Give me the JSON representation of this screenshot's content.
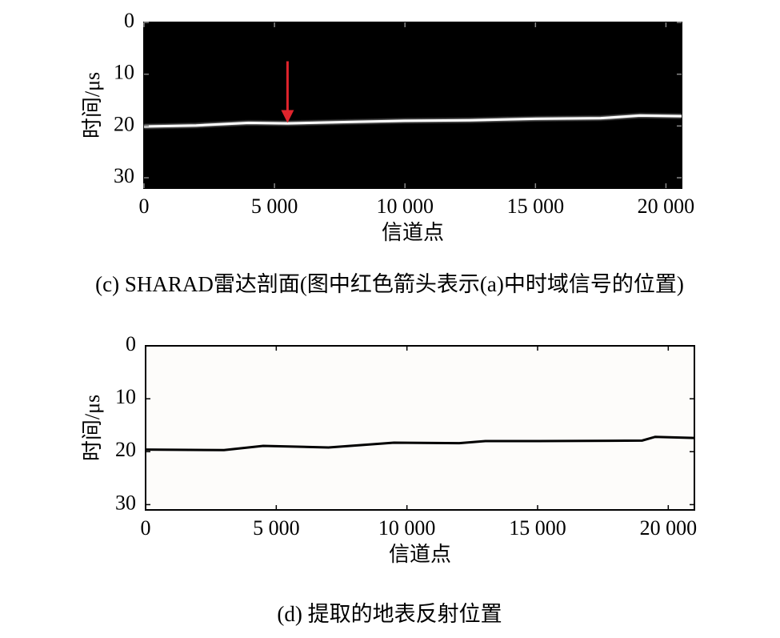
{
  "chart_data": [
    {
      "type": "line",
      "caption": "(c) SHARAD雷达剖面(图中红色箭头表示(a)中时域信号的位置)",
      "xlabel": "信道点",
      "ylabel": "时间/μs",
      "x": [
        0,
        2000,
        4000,
        5500,
        8000,
        10000,
        12500,
        15000,
        17500,
        19000,
        20600
      ],
      "values": [
        20.1,
        19.9,
        19.4,
        19.5,
        19.2,
        19.0,
        18.9,
        18.6,
        18.5,
        18.0,
        18.1
      ],
      "color": "#ffffff",
      "background": "#000000",
      "arrow": {
        "x": 5500,
        "y_start": 7.5,
        "y_end": 19.4,
        "color": "#e0242c"
      },
      "xlim": [
        0,
        20600
      ],
      "ylim": [
        0,
        32
      ],
      "inverted_y": true,
      "xticks": [
        0,
        {
          "value": 5000,
          "label": "5 000"
        },
        {
          "value": 10000,
          "label": "10 000"
        },
        {
          "value": 15000,
          "label": "15 000"
        },
        {
          "value": 20000,
          "label": "20 000"
        }
      ],
      "yticks": [
        0,
        10,
        20,
        30
      ]
    },
    {
      "type": "line",
      "caption": "(d) 提取的地表反射位置",
      "xlabel": "信道点",
      "ylabel": "时间/μs",
      "x": [
        0,
        3000,
        4500,
        7000,
        9500,
        12000,
        13000,
        15000,
        19000,
        19500,
        21000
      ],
      "values": [
        19.6,
        19.7,
        18.9,
        19.2,
        18.3,
        18.4,
        18.0,
        18.0,
        17.9,
        17.2,
        17.4
      ],
      "color": "#000000",
      "background": "#fdfcfa",
      "xlim": [
        0,
        21000
      ],
      "ylim": [
        0,
        31
      ],
      "inverted_y": true,
      "xticks": [
        0,
        {
          "value": 5000,
          "label": "5 000"
        },
        {
          "value": 10000,
          "label": "10 000"
        },
        {
          "value": 15000,
          "label": "15 000"
        },
        {
          "value": 20000,
          "label": "20 000"
        }
      ],
      "yticks": [
        0,
        10,
        20,
        30
      ]
    }
  ]
}
